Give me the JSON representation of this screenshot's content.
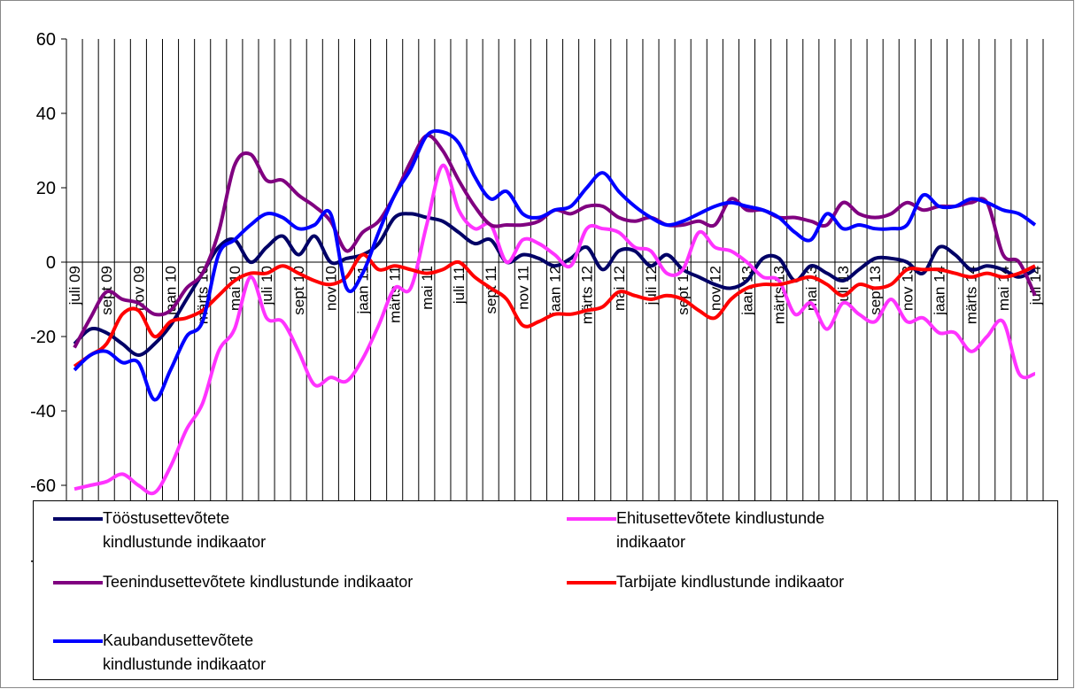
{
  "chart_data": {
    "type": "line",
    "categories": [
      "juli 09",
      null,
      "sept 09",
      null,
      "nov 09",
      null,
      "jaan 10",
      null,
      "märts 10",
      null,
      "mai 10",
      null,
      "juli 10",
      null,
      "sept 10",
      null,
      "nov 10",
      null,
      "jaan 11",
      null,
      "märts 11",
      null,
      "mai 11",
      null,
      "juli 11",
      null,
      "sept 11",
      null,
      "nov 11",
      null,
      "jaan 12",
      null,
      "märts 12",
      null,
      "mai 12",
      null,
      "juli 12",
      null,
      "sept 12",
      null,
      "nov 12",
      null,
      "jaan 13",
      null,
      "märts 13",
      null,
      "mai 13",
      null,
      "juli 13",
      null,
      "sept 13",
      null,
      "nov 13",
      null,
      "jaan 14",
      null,
      "märts 14",
      null,
      "mai 14",
      null,
      "juli 14"
    ],
    "series": [
      {
        "name": "Tööstusettevõtete kindlustunde indikaator",
        "color": "#000066",
        "values": [
          -22,
          -18,
          -19,
          -22,
          -25,
          -22,
          -17,
          -10,
          -3,
          4,
          6,
          0,
          4,
          7,
          2,
          7,
          0,
          1,
          2,
          5,
          12,
          13,
          12,
          11,
          8,
          5,
          6,
          0,
          2,
          1,
          -1,
          1,
          4,
          -2,
          3,
          3,
          -1,
          2,
          -2,
          -4,
          -6,
          -7,
          -5,
          1,
          1,
          -5,
          -1,
          -3,
          -5,
          -2,
          1,
          1,
          0,
          -3,
          4,
          2,
          -2,
          -1,
          -2,
          -4,
          -2
        ]
      },
      {
        "name": "Ehitusettevõtete kindlustunde indikaator",
        "color": "#ff33ff",
        "values": [
          -61,
          -60,
          -59,
          -57,
          -60,
          -62,
          -55,
          -45,
          -38,
          -24,
          -18,
          -4,
          -15,
          -16,
          -24,
          -33,
          -31,
          -32,
          -26,
          -17,
          -7,
          -7,
          10,
          26,
          14,
          9,
          10,
          0,
          6,
          5,
          2,
          -1,
          9,
          9,
          8,
          4,
          3,
          -3,
          -2,
          8,
          4,
          3,
          0,
          -4,
          -5,
          -14,
          -11,
          -18,
          -11,
          -14,
          -16,
          -10,
          -16,
          -15,
          -19,
          -19,
          -24,
          -20,
          -16,
          -30,
          -30
        ]
      },
      {
        "name": "Teenindusettevõtete kindlustunde indikaator",
        "color": "#800080",
        "values": [
          -23,
          -15,
          -8,
          -10,
          -11,
          -14,
          -13,
          -7,
          -3,
          8,
          26,
          29,
          22,
          22,
          18,
          15,
          11,
          3,
          8,
          11,
          18,
          27,
          34,
          30,
          22,
          15,
          10,
          10,
          10,
          11,
          14,
          13,
          15,
          15,
          12,
          11,
          12,
          10,
          10,
          11,
          10,
          17,
          14,
          14,
          12,
          12,
          11,
          10,
          16,
          13,
          12,
          13,
          16,
          14,
          15,
          15,
          16,
          16,
          2,
          0,
          -9
        ]
      },
      {
        "name": "Tarbijate kindlustunde indikaator",
        "color": "#ff0000",
        "values": [
          -28,
          -25,
          -22,
          -14,
          -13,
          -20,
          -16,
          -15,
          -13,
          -9,
          -5,
          -3,
          -3,
          -1,
          -3,
          -5,
          -6,
          -4,
          2,
          -2,
          -1,
          -2,
          -3,
          -2,
          0,
          -4,
          -7,
          -10,
          -17,
          -16,
          -14,
          -14,
          -13,
          -12,
          -8,
          -9,
          -10,
          -9,
          -10,
          -13,
          -15,
          -10,
          -7,
          -6,
          -6,
          -5,
          -4,
          -6,
          -9,
          -6,
          -7,
          -6,
          -2,
          -2,
          -2,
          -3,
          -4,
          -3,
          -4,
          -3,
          -1
        ]
      },
      {
        "name": "Kaubandusettevõtete kindlustunde indikaator",
        "color": "#0000ff",
        "values": [
          -29,
          -25,
          -24,
          -27,
          -27,
          -37,
          -29,
          -20,
          -16,
          2,
          6,
          10,
          13,
          12,
          9,
          10,
          13,
          -7,
          -3,
          8,
          18,
          25,
          34,
          35,
          32,
          23,
          17,
          19,
          13,
          12,
          14,
          15,
          20,
          24,
          19,
          15,
          12,
          10,
          11,
          13,
          15,
          16,
          15,
          14,
          12,
          8,
          6,
          13,
          9,
          10,
          9,
          9,
          10,
          18,
          15,
          15,
          17,
          16,
          14,
          13,
          10
        ]
      }
    ],
    "ylim": [
      -80,
      60
    ],
    "yticks": [
      -80,
      -60,
      -40,
      -20,
      0,
      20,
      40,
      60
    ],
    "grid": true
  }
}
